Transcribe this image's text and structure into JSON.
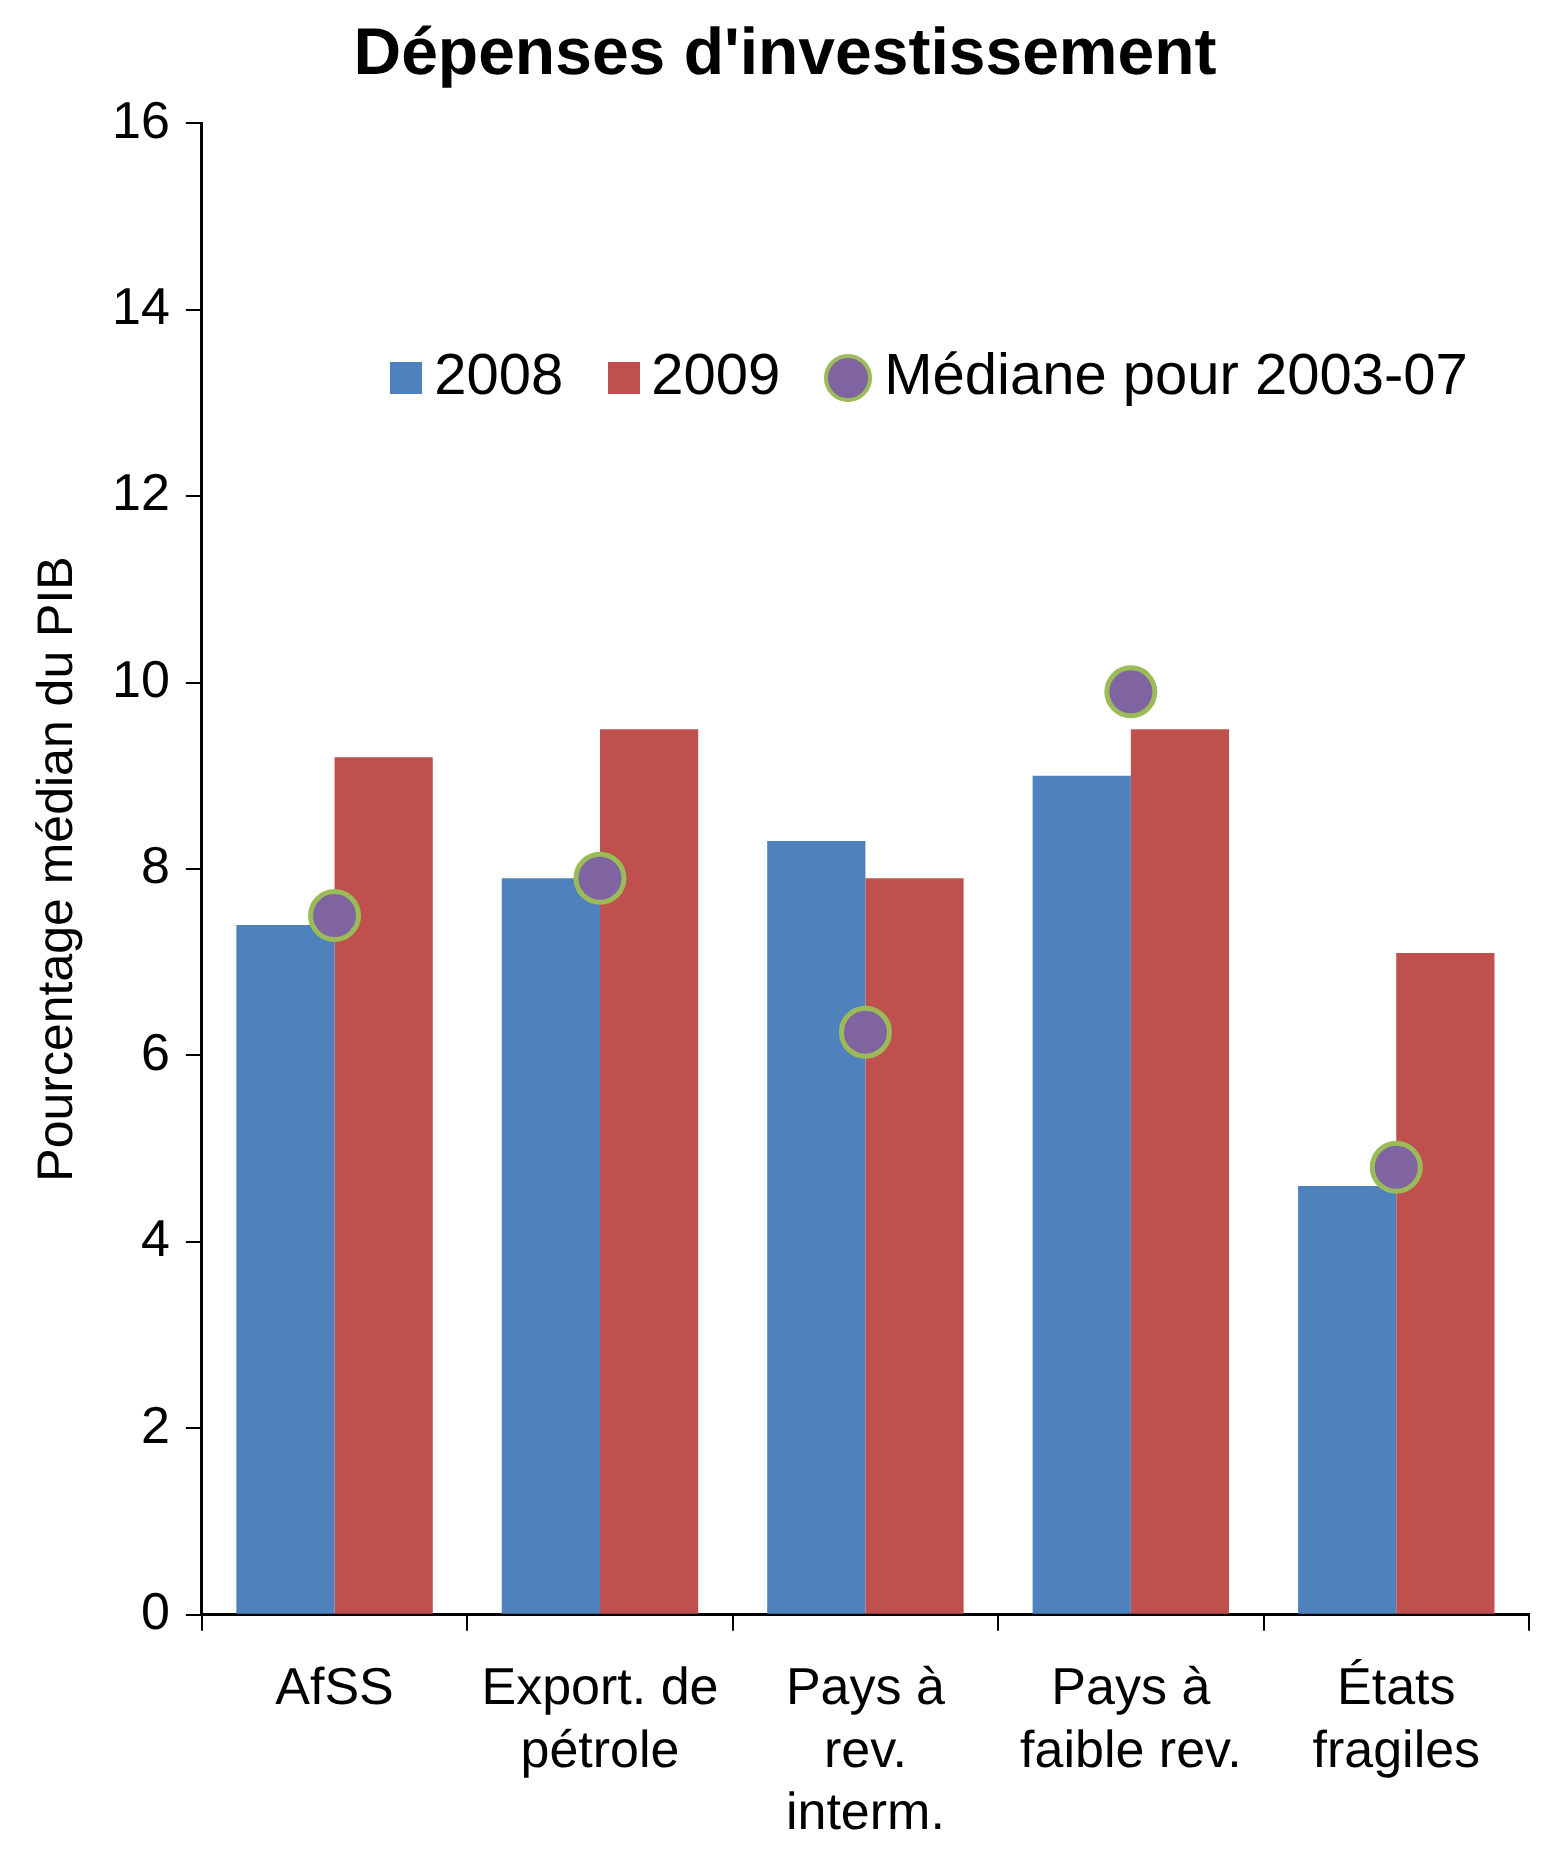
{
  "chart_data": {
    "type": "bar",
    "title": "Dépenses d'investissement",
    "ylabel": "Pourcentage médian du PIB",
    "categories": [
      "AfSS",
      "Export. de\npétrole",
      "Pays à\nrev.\ninterm.",
      "Pays à\nfaible rev.",
      "États\nfragiles"
    ],
    "series": [
      {
        "name": "2008",
        "color": "#4f81bd",
        "values": [
          7.4,
          7.9,
          8.3,
          9.0,
          4.6
        ]
      },
      {
        "name": "2009",
        "color": "#c0504d",
        "values": [
          9.2,
          9.5,
          7.9,
          9.5,
          7.1
        ]
      },
      {
        "name": "Médiane pour 2003-07",
        "type": "scatter",
        "color": "#8064a2",
        "x": [
          "AfSS",
          "Export. de\npétrole",
          "Pays à\nrev.\ninterm.",
          "Pays à\nfaible rev.",
          "États\nfragiles"
        ],
        "values": [
          7.5,
          7.9,
          6.25,
          9.9,
          4.8
        ]
      }
    ],
    "ylim": [
      0,
      16
    ],
    "yticks": [
      0,
      2,
      4,
      6,
      8,
      10,
      12,
      14,
      16
    ],
    "grid": false,
    "legend": "top",
    "marker": "circle"
  }
}
